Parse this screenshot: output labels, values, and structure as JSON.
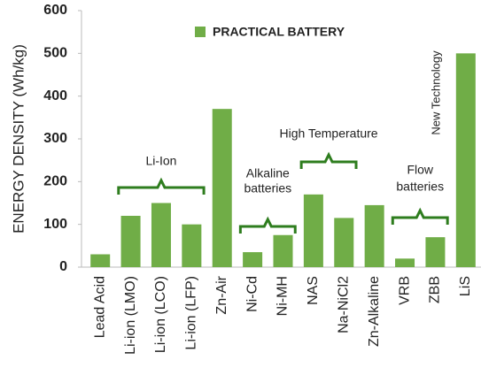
{
  "chart_data": {
    "type": "bar",
    "y_label": "ENERGY DENSITY (Wh/kg)",
    "categories": [
      "Lead Acid",
      "Li-ion (LMO)",
      "Li-ion (LCO)",
      "Li-ion (LFP)",
      "Zn-Air",
      "Ni-Cd",
      "Ni-MH",
      "NAS",
      "Na-NiCl2",
      "Zn-Alkaline",
      "VRB",
      "ZBB",
      "LiS"
    ],
    "series": [
      {
        "name": "PRACTICAL BATTERY",
        "color": "#70ad47",
        "values": [
          30,
          120,
          150,
          100,
          370,
          35,
          75,
          170,
          115,
          145,
          20,
          70,
          500
        ]
      }
    ],
    "ylim": [
      0,
      600
    ],
    "yticks": [
      0,
      100,
      200,
      300,
      400,
      500,
      600
    ],
    "grid": false,
    "legend": "top",
    "annotations": [
      {
        "lines": [
          "Li-Ion"
        ],
        "from": 1,
        "to": 3
      },
      {
        "lines": [
          "Alkaline",
          "batteries"
        ],
        "from": 5,
        "to": 6
      },
      {
        "lines": [
          "High Temperature"
        ],
        "from": 7,
        "to": 8
      },
      {
        "lines": [
          "Flow",
          "batteries"
        ],
        "from": 10,
        "to": 11
      },
      {
        "lines": [
          "New Technology"
        ],
        "from": 12,
        "to": 12
      }
    ]
  }
}
